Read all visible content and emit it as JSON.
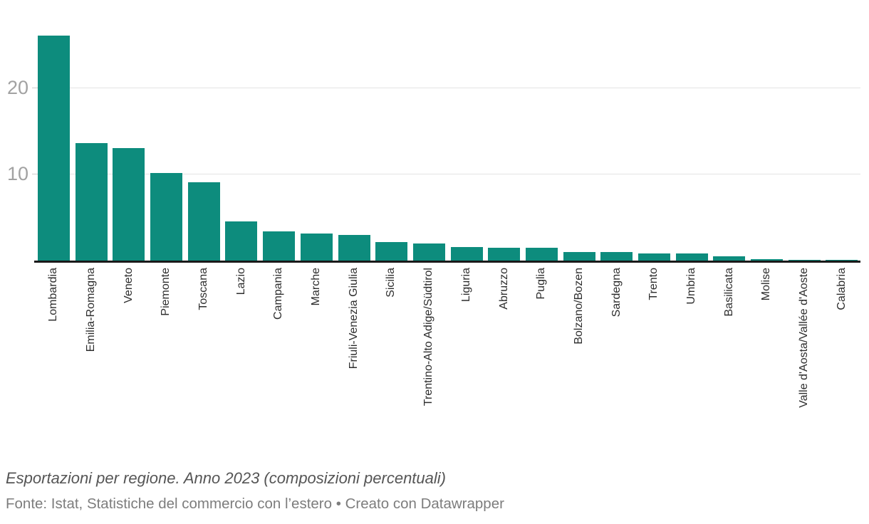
{
  "chart_data": {
    "type": "bar",
    "title": "Esportazioni per regione. Anno 2023 (composizioni percentuali)",
    "source": "Fonte: Istat, Statistiche del commercio con l’estero • Creato con Datawrapper",
    "categories": [
      "Lombardia",
      "Emilia-Romagna",
      "Veneto",
      "Piemonte",
      "Toscana",
      "Lazio",
      "Campania",
      "Marche",
      "Friuli-Venezia Giulia",
      "Sicilia",
      "Trentino-Alto Adige/Südtirol",
      "Liguria",
      "Abruzzo",
      "Puglia",
      "Bolzano/Bozen",
      "Sardegna",
      "Trento",
      "Umbria",
      "Basilicata",
      "Molise",
      "Valle d'Aosta/Vallée d'Aoste",
      "Calabria"
    ],
    "values": [
      26.0,
      13.6,
      13.0,
      10.1,
      9.0,
      4.5,
      3.4,
      3.1,
      3.0,
      2.1,
      2.0,
      1.6,
      1.5,
      1.5,
      1.0,
      1.0,
      0.8,
      0.8,
      0.5,
      0.2,
      0.1,
      0.05
    ],
    "xlabel": "",
    "ylabel": "",
    "ylim": [
      0,
      26.5
    ],
    "yticks": [
      10,
      20
    ],
    "grid": "horizontal",
    "legend": "none",
    "colors": {
      "bar": "#0d8c7d",
      "axis_line": "#1a1a1a",
      "gridline": "#e4e4e4",
      "tick_dash": "#cccccc",
      "tick_label": "#a2a2a2",
      "category_label": "#2d2d2d",
      "title": "#555555",
      "source": "#7d7d7d"
    }
  }
}
